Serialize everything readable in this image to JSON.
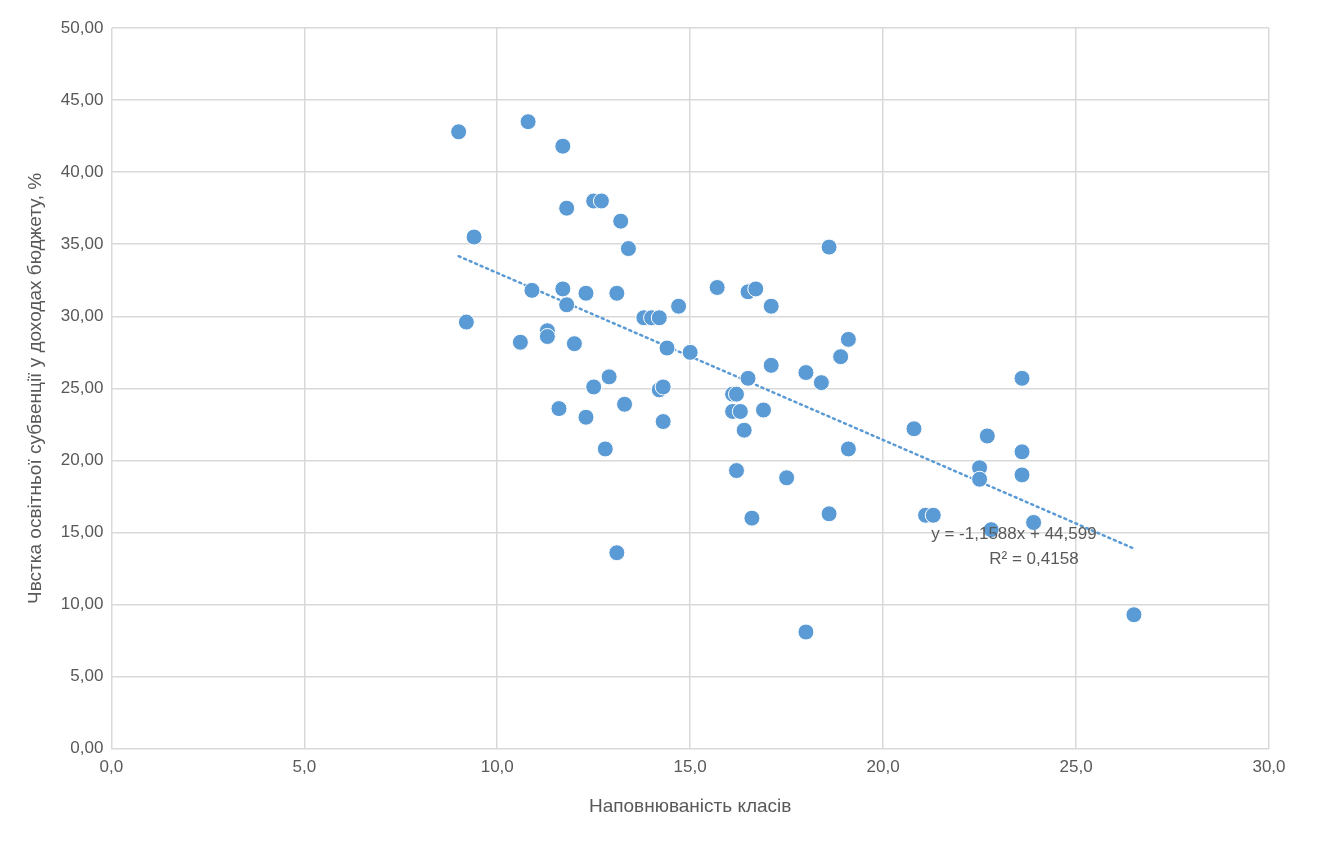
{
  "chart_data": {
    "type": "scatter",
    "xlabel": "Наповнюваність класів",
    "ylabel": "Чвстка освітньої субвенції у доходах бюджету, %",
    "xlim": [
      0,
      30
    ],
    "ylim": [
      0,
      50
    ],
    "xticks": [
      {
        "value": 0,
        "label": "0,0"
      },
      {
        "value": 5,
        "label": "5,0"
      },
      {
        "value": 10,
        "label": "10,0"
      },
      {
        "value": 15,
        "label": "15,0"
      },
      {
        "value": 20,
        "label": "20,0"
      },
      {
        "value": 25,
        "label": "25,0"
      },
      {
        "value": 30,
        "label": "30,0"
      }
    ],
    "yticks": [
      {
        "value": 0,
        "label": "0,00"
      },
      {
        "value": 5,
        "label": "5,00"
      },
      {
        "value": 10,
        "label": "10,00"
      },
      {
        "value": 15,
        "label": "15,00"
      },
      {
        "value": 20,
        "label": "20,00"
      },
      {
        "value": 25,
        "label": "25,00"
      },
      {
        "value": 30,
        "label": "30,00"
      },
      {
        "value": 35,
        "label": "35,00"
      },
      {
        "value": 40,
        "label": "40,00"
      },
      {
        "value": 45,
        "label": "45,00"
      },
      {
        "value": 50,
        "label": "50,00"
      }
    ],
    "grid": true,
    "legend": false,
    "marker": "circle",
    "series": [
      {
        "color": "#5b9bd5",
        "x": [
          9.0,
          10.8,
          11.7,
          9.4,
          11.8,
          12.5,
          12.7,
          13.2,
          13.4,
          9.2,
          10.9,
          11.7,
          12.3,
          13.1,
          11.8,
          11.3,
          11.3,
          10.6,
          12.0,
          13.8,
          14.0,
          14.2,
          14.7,
          14.4,
          15.0,
          12.9,
          12.5,
          14.2,
          14.3,
          11.6,
          12.3,
          13.3,
          14.3,
          12.8,
          13.1,
          18.0,
          15.7,
          16.5,
          16.7,
          17.1,
          18.6,
          19.1,
          18.9,
          17.1,
          18.0,
          18.4,
          16.5,
          16.1,
          16.2,
          16.1,
          16.3,
          16.9,
          16.4,
          16.2,
          17.5,
          16.6,
          18.6,
          19.1,
          20.8,
          22.7,
          22.5,
          22.5,
          23.6,
          23.6,
          23.6,
          21.1,
          21.3,
          22.8,
          23.9,
          26.5
        ],
        "values": [
          42.8,
          43.5,
          41.8,
          35.5,
          37.5,
          38.0,
          38.0,
          36.6,
          34.7,
          29.6,
          31.8,
          31.9,
          31.6,
          31.6,
          30.8,
          29.0,
          28.6,
          28.2,
          28.1,
          29.9,
          29.9,
          29.9,
          30.7,
          27.8,
          27.5,
          25.8,
          25.1,
          24.9,
          25.1,
          23.6,
          23.0,
          23.9,
          22.7,
          20.8,
          13.6,
          8.1,
          32.0,
          31.7,
          31.9,
          30.7,
          34.8,
          28.4,
          27.2,
          26.6,
          26.1,
          25.4,
          25.7,
          24.6,
          24.6,
          23.4,
          23.4,
          23.5,
          22.1,
          19.3,
          18.8,
          16.0,
          16.3,
          20.8,
          22.2,
          21.7,
          19.5,
          18.7,
          25.7,
          20.6,
          19.0,
          16.2,
          16.2,
          15.2,
          15.7,
          9.3
        ]
      },
      {
        "type": "line",
        "color": "#5b9bd5",
        "line_style": "dotted",
        "marker": "none",
        "x": [
          9.0,
          26.5
        ],
        "values": [
          34.17,
          13.89
        ]
      }
    ],
    "annotations": [
      "y = -1,1588x + 44,599",
      "R² = 0,4158"
    ]
  }
}
